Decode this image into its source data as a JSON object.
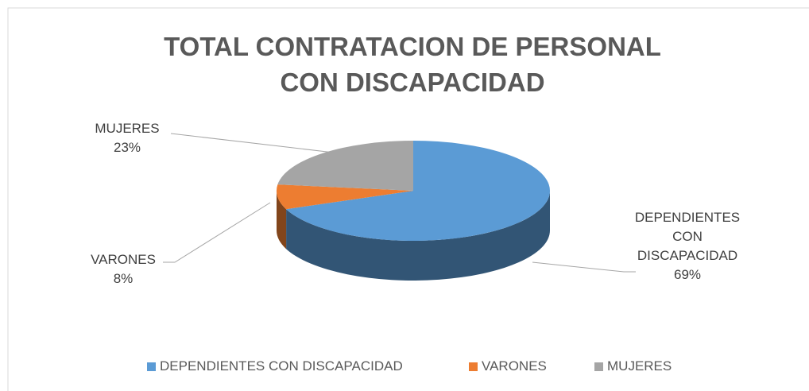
{
  "chart_data": {
    "type": "pie",
    "title": "TOTAL CONTRATACION DE PERSONAL CON DISCAPACIDAD",
    "categories": [
      "DEPENDIENTES CON DISCAPACIDAD",
      "VARONES",
      "MUJERES"
    ],
    "values": [
      69,
      8,
      23
    ],
    "value_labels": [
      "69%",
      "8%",
      "23%"
    ],
    "colors": [
      "#5b9bd5",
      "#ed7d31",
      "#a5a5a5"
    ],
    "legend": "bottom"
  }
}
